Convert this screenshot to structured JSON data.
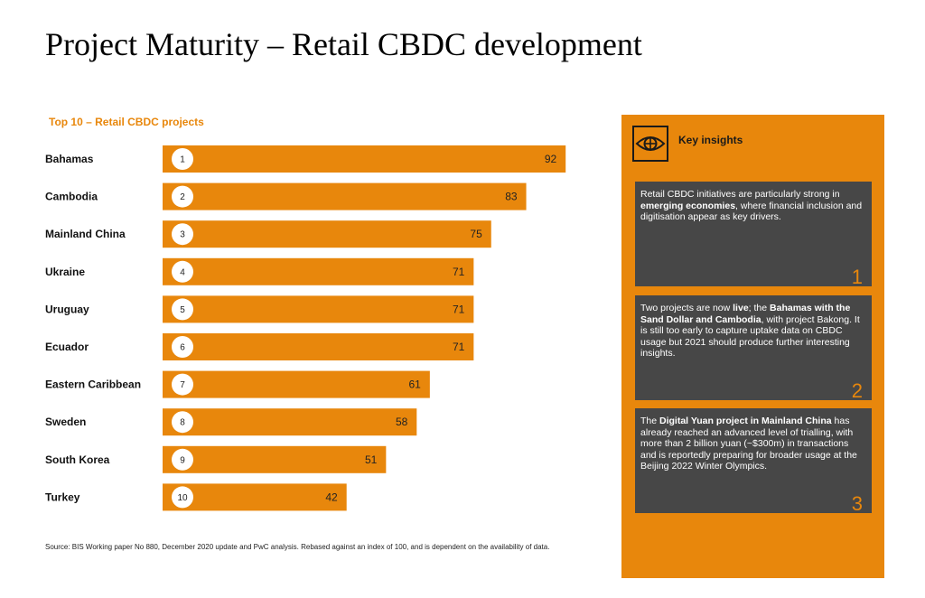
{
  "title": "Project Maturity – Retail CBDC development",
  "chart_title": "Top 10 – Retail CBDC projects",
  "source": "Source: BIS Working paper No 880, December 2020 update and PwC analysis. Rebased against an index of 100, and is dependent on the availability of data.",
  "chart_data": {
    "type": "bar",
    "orientation": "horizontal",
    "title": "Top 10 – Retail CBDC projects",
    "categories": [
      "Bahamas",
      "Cambodia",
      "Mainland China",
      "Ukraine",
      "Uruguay",
      "Ecuador",
      "Eastern Caribbean",
      "Sweden",
      "South Korea",
      "Turkey"
    ],
    "ranks": [
      "1",
      "2",
      "3",
      "4",
      "5",
      "6",
      "7",
      "8",
      "9",
      "10"
    ],
    "values": [
      92,
      83,
      75,
      71,
      71,
      71,
      61,
      58,
      51,
      42
    ],
    "xlim": [
      0,
      100
    ],
    "bar_color": "#e8870c",
    "grid": false,
    "data_labels": true
  },
  "insights": {
    "heading": "Key insights",
    "icon": "eye-icon",
    "cards": [
      {
        "number": "1",
        "parts": [
          {
            "text": "Retail CBDC initiatives are particularly strong in ",
            "bold": false
          },
          {
            "text": "emerging economies",
            "bold": true
          },
          {
            "text": ", where financial inclusion and digitisation appear as key drivers.",
            "bold": false
          }
        ]
      },
      {
        "number": "2",
        "parts": [
          {
            "text": "Two projects are now ",
            "bold": false
          },
          {
            "text": "live",
            "bold": true
          },
          {
            "text": "; the ",
            "bold": false
          },
          {
            "text": "Bahamas with the Sand Dollar and Cambodia",
            "bold": true
          },
          {
            "text": ", with project Bakong. It is still too early to capture uptake data on CBDC usage but 2021 should produce further interesting insights.",
            "bold": false
          }
        ]
      },
      {
        "number": "3",
        "parts": [
          {
            "text": "The ",
            "bold": false
          },
          {
            "text": "Digital Yuan project in Mainland China",
            "bold": true
          },
          {
            "text": " has already reached an advanced level of trialling, with more than 2 billion yuan (~$300m) in transactions and is reportedly preparing for broader usage at the Beijing 2022 Winter Olympics.",
            "bold": false
          }
        ]
      }
    ]
  },
  "colors": {
    "accent": "#e8870c",
    "card": "#474747"
  }
}
